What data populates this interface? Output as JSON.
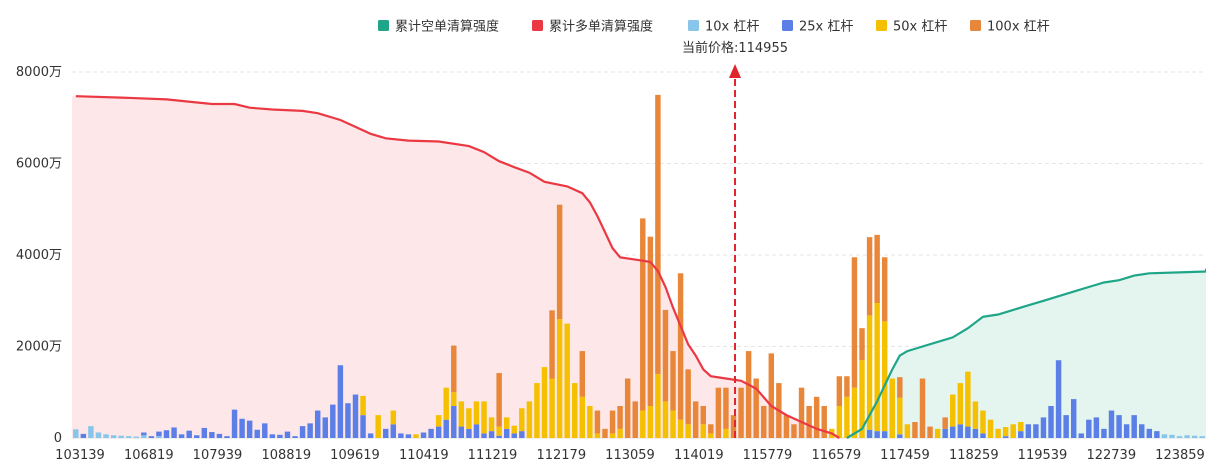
{
  "legend": {
    "items": [
      {
        "label": "累计空单清算强度",
        "color": "#1fa688"
      },
      {
        "label": "累计多单清算强度",
        "color": "#ea3943"
      },
      {
        "label": "10x 杠杆",
        "color": "#87c6ea"
      },
      {
        "label": "25x 杠杆",
        "color": "#5b7fe6"
      },
      {
        "label": "50x 杠杆",
        "color": "#f5c000"
      },
      {
        "label": "100x 杠杆",
        "color": "#e8873a"
      }
    ]
  },
  "current_price": {
    "label": "当前价格:114955",
    "value": 114955
  },
  "chart_data": {
    "type": "bar",
    "y_unit": "万",
    "ylim": [
      0,
      8000
    ],
    "y_ticks": [
      {
        "value": 0,
        "label": "0"
      },
      {
        "value": 2000,
        "label": "2000万"
      },
      {
        "value": 4000,
        "label": "4000万"
      },
      {
        "value": 6000,
        "label": "6000万"
      },
      {
        "value": 8000,
        "label": "8000万"
      }
    ],
    "x_tick_labels": [
      "103139",
      "106819",
      "107939",
      "108819",
      "109619",
      "110419",
      "111219",
      "112179",
      "113059",
      "114019",
      "115779",
      "116579",
      "117459",
      "118259",
      "119539",
      "122739",
      "123859"
    ],
    "price_marker_index": 87,
    "bar_count": 150,
    "bars": [
      [
        190,
        0,
        0,
        0
      ],
      [
        0,
        90,
        0,
        0
      ],
      [
        260,
        0,
        0,
        0
      ],
      [
        120,
        0,
        0,
        0
      ],
      [
        80,
        0,
        0,
        0
      ],
      [
        60,
        0,
        0,
        0
      ],
      [
        50,
        0,
        0,
        0
      ],
      [
        40,
        0,
        0,
        0
      ],
      [
        30,
        0,
        0,
        0
      ],
      [
        60,
        60,
        0,
        0
      ],
      [
        0,
        40,
        0,
        0
      ],
      [
        40,
        100,
        0,
        0
      ],
      [
        0,
        170,
        0,
        0
      ],
      [
        0,
        230,
        0,
        0
      ],
      [
        0,
        80,
        0,
        0
      ],
      [
        0,
        160,
        0,
        0
      ],
      [
        0,
        60,
        0,
        0
      ],
      [
        0,
        220,
        0,
        0
      ],
      [
        0,
        130,
        0,
        0
      ],
      [
        0,
        90,
        0,
        0
      ],
      [
        0,
        40,
        0,
        0
      ],
      [
        0,
        620,
        0,
        0
      ],
      [
        0,
        420,
        0,
        0
      ],
      [
        0,
        380,
        0,
        0
      ],
      [
        0,
        180,
        0,
        0
      ],
      [
        0,
        320,
        0,
        0
      ],
      [
        0,
        80,
        0,
        0
      ],
      [
        0,
        70,
        0,
        0
      ],
      [
        0,
        140,
        0,
        0
      ],
      [
        0,
        40,
        0,
        0
      ],
      [
        0,
        260,
        0,
        0
      ],
      [
        0,
        320,
        0,
        0
      ],
      [
        0,
        600,
        0,
        0
      ],
      [
        0,
        450,
        0,
        0
      ],
      [
        0,
        730,
        0,
        0
      ],
      [
        0,
        1590,
        0,
        0
      ],
      [
        0,
        760,
        0,
        0
      ],
      [
        0,
        950,
        0,
        0
      ],
      [
        0,
        500,
        420,
        0
      ],
      [
        0,
        100,
        0,
        0
      ],
      [
        0,
        0,
        500,
        0
      ],
      [
        0,
        200,
        0,
        0
      ],
      [
        0,
        300,
        300,
        0
      ],
      [
        0,
        100,
        0,
        0
      ],
      [
        0,
        80,
        0,
        0
      ],
      [
        0,
        0,
        80,
        0
      ],
      [
        0,
        120,
        0,
        0
      ],
      [
        0,
        200,
        0,
        0
      ],
      [
        0,
        250,
        250,
        0
      ],
      [
        0,
        400,
        700,
        0
      ],
      [
        0,
        700,
        300,
        1020
      ],
      [
        0,
        250,
        550,
        0
      ],
      [
        0,
        200,
        450,
        0
      ],
      [
        0,
        300,
        500,
        0
      ],
      [
        0,
        100,
        700,
        0
      ],
      [
        0,
        150,
        300,
        0
      ],
      [
        0,
        50,
        200,
        1170
      ],
      [
        0,
        200,
        250,
        0
      ],
      [
        0,
        100,
        170,
        0
      ],
      [
        0,
        150,
        500,
        0
      ],
      [
        0,
        0,
        800,
        0
      ],
      [
        0,
        0,
        1200,
        0
      ],
      [
        0,
        0,
        1550,
        0
      ],
      [
        0,
        0,
        1300,
        1490
      ],
      [
        0,
        0,
        2600,
        2500
      ],
      [
        0,
        0,
        2500,
        0
      ],
      [
        0,
        0,
        1200,
        0
      ],
      [
        0,
        0,
        900,
        1000
      ],
      [
        0,
        0,
        700,
        0
      ],
      [
        0,
        0,
        100,
        500
      ],
      [
        0,
        0,
        0,
        200
      ],
      [
        0,
        0,
        100,
        500
      ],
      [
        0,
        0,
        200,
        500
      ],
      [
        0,
        0,
        0,
        1300
      ],
      [
        0,
        0,
        0,
        800
      ],
      [
        0,
        0,
        600,
        4200
      ],
      [
        0,
        0,
        700,
        3700
      ],
      [
        0,
        0,
        1400,
        6100
      ],
      [
        0,
        0,
        800,
        2000
      ],
      [
        0,
        0,
        600,
        1300
      ],
      [
        0,
        0,
        400,
        3200
      ],
      [
        0,
        0,
        300,
        1200
      ],
      [
        0,
        0,
        0,
        800
      ],
      [
        0,
        0,
        300,
        400
      ],
      [
        0,
        0,
        100,
        200
      ],
      [
        0,
        0,
        0,
        1100
      ],
      [
        0,
        0,
        200,
        900
      ],
      [
        0,
        0,
        0,
        500
      ],
      [
        0,
        0,
        0,
        1100
      ],
      [
        0,
        0,
        0,
        1900
      ],
      [
        0,
        0,
        0,
        1300
      ],
      [
        0,
        0,
        0,
        700
      ],
      [
        0,
        0,
        0,
        1850
      ],
      [
        0,
        0,
        0,
        1200
      ],
      [
        0,
        0,
        0,
        500
      ],
      [
        0,
        0,
        0,
        300
      ],
      [
        0,
        0,
        0,
        1100
      ],
      [
        0,
        0,
        0,
        700
      ],
      [
        0,
        0,
        0,
        900
      ],
      [
        0,
        0,
        0,
        700
      ],
      [
        0,
        0,
        200,
        0
      ],
      [
        0,
        0,
        700,
        650
      ],
      [
        0,
        0,
        900,
        450
      ],
      [
        0,
        0,
        1100,
        2850
      ],
      [
        0,
        0,
        1700,
        700
      ],
      [
        0,
        180,
        2500,
        1710
      ],
      [
        0,
        150,
        2800,
        1490
      ],
      [
        0,
        150,
        2400,
        1400
      ],
      [
        0,
        0,
        1300,
        0
      ],
      [
        0,
        80,
        800,
        450
      ],
      [
        0,
        0,
        300,
        0
      ],
      [
        0,
        0,
        0,
        350
      ],
      [
        0,
        0,
        0,
        1300
      ],
      [
        0,
        0,
        0,
        250
      ],
      [
        0,
        0,
        200,
        0
      ],
      [
        0,
        200,
        0,
        250
      ],
      [
        0,
        250,
        700,
        0
      ],
      [
        0,
        300,
        900,
        0
      ],
      [
        0,
        250,
        1200,
        0
      ],
      [
        0,
        200,
        600,
        0
      ],
      [
        0,
        100,
        500,
        0
      ],
      [
        0,
        0,
        400,
        0
      ],
      [
        0,
        0,
        200,
        0
      ],
      [
        0,
        40,
        200,
        0
      ],
      [
        0,
        0,
        300,
        0
      ],
      [
        0,
        150,
        200,
        0
      ],
      [
        0,
        300,
        0,
        0
      ],
      [
        0,
        300,
        0,
        0
      ],
      [
        0,
        450,
        0,
        0
      ],
      [
        0,
        700,
        0,
        0
      ],
      [
        0,
        1700,
        0,
        0
      ],
      [
        0,
        500,
        0,
        0
      ],
      [
        0,
        850,
        0,
        0
      ],
      [
        0,
        100,
        0,
        0
      ],
      [
        0,
        400,
        0,
        0
      ],
      [
        0,
        450,
        0,
        0
      ],
      [
        0,
        200,
        0,
        0
      ],
      [
        0,
        600,
        0,
        0
      ],
      [
        0,
        500,
        0,
        0
      ],
      [
        0,
        300,
        0,
        0
      ],
      [
        0,
        500,
        0,
        0
      ],
      [
        0,
        300,
        0,
        0
      ],
      [
        0,
        200,
        0,
        0
      ],
      [
        0,
        150,
        0,
        0
      ],
      [
        80,
        0,
        0,
        0
      ],
      [
        70,
        0,
        0,
        0
      ],
      [
        40,
        0,
        0,
        0
      ],
      [
        60,
        0,
        0,
        0
      ],
      [
        50,
        0,
        0,
        0
      ],
      [
        40,
        0,
        0,
        0
      ]
    ],
    "series": [
      {
        "name": "累计多单清算强度",
        "points": [
          [
            0,
            7470
          ],
          [
            6,
            7440
          ],
          [
            12,
            7400
          ],
          [
            18,
            7300
          ],
          [
            21,
            7300
          ],
          [
            23,
            7220
          ],
          [
            26,
            7180
          ],
          [
            30,
            7150
          ],
          [
            32,
            7100
          ],
          [
            35,
            6950
          ],
          [
            37,
            6800
          ],
          [
            39,
            6650
          ],
          [
            41,
            6550
          ],
          [
            44,
            6500
          ],
          [
            48,
            6480
          ],
          [
            52,
            6380
          ],
          [
            54,
            6250
          ],
          [
            56,
            6050
          ],
          [
            58,
            5920
          ],
          [
            60,
            5800
          ],
          [
            62,
            5600
          ],
          [
            65,
            5500
          ],
          [
            67,
            5350
          ],
          [
            68,
            5150
          ],
          [
            69,
            4850
          ],
          [
            70,
            4500
          ],
          [
            71,
            4150
          ],
          [
            72,
            3950
          ],
          [
            74,
            3900
          ],
          [
            76,
            3850
          ],
          [
            77,
            3650
          ],
          [
            78,
            3300
          ],
          [
            79,
            2850
          ],
          [
            80,
            2450
          ],
          [
            81,
            2050
          ],
          [
            82,
            1800
          ],
          [
            83,
            1500
          ],
          [
            84,
            1350
          ],
          [
            86,
            1300
          ],
          [
            88,
            1250
          ],
          [
            90,
            1080
          ],
          [
            92,
            700
          ],
          [
            94,
            500
          ],
          [
            96,
            350
          ],
          [
            98,
            200
          ],
          [
            100,
            100
          ],
          [
            101,
            0
          ]
        ]
      },
      {
        "name": "累计空单清算强度",
        "points": [
          [
            102,
            0
          ],
          [
            104,
            200
          ],
          [
            106,
            800
          ],
          [
            108,
            1500
          ],
          [
            109,
            1800
          ],
          [
            110,
            1900
          ],
          [
            112,
            2000
          ],
          [
            114,
            2100
          ],
          [
            116,
            2200
          ],
          [
            118,
            2400
          ],
          [
            120,
            2650
          ],
          [
            122,
            2700
          ],
          [
            124,
            2800
          ],
          [
            126,
            2900
          ],
          [
            128,
            3000
          ],
          [
            130,
            3100
          ],
          [
            132,
            3200
          ],
          [
            134,
            3300
          ],
          [
            136,
            3400
          ],
          [
            138,
            3450
          ],
          [
            140,
            3550
          ],
          [
            142,
            3600
          ],
          [
            146,
            3620
          ],
          [
            150,
            3640
          ],
          [
            155,
            3680
          ],
          [
            162,
            3700
          ]
        ]
      }
    ]
  }
}
